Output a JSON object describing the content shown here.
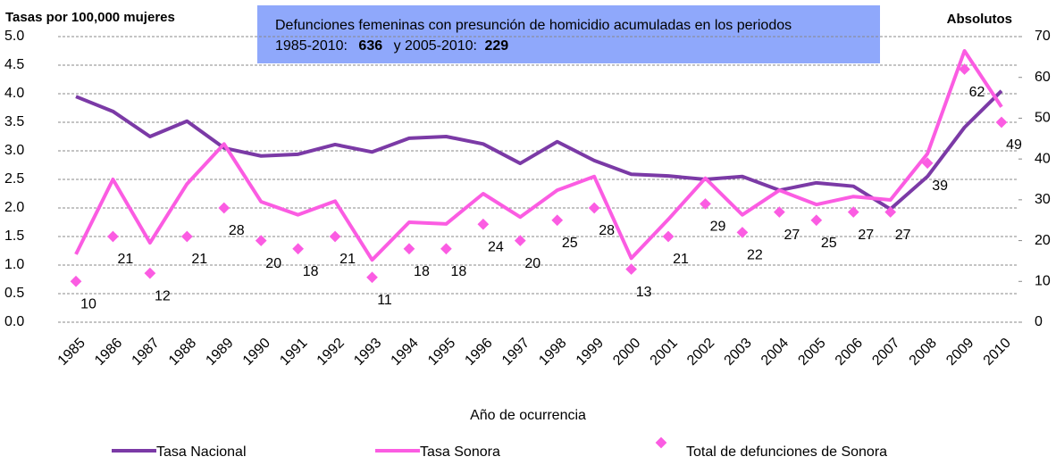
{
  "chart_data": {
    "type": "line",
    "y_label": "Tasas por 100,000 mujeres",
    "y2_label": "Absolutos",
    "x_label": "Año de ocurrencia",
    "annotation": [
      "Defunciones femeninas con presunción de homicidio acumuladas en los periodos",
      "1985-2010:",
      "636",
      "y 2005-2010:",
      "229"
    ],
    "categories": [
      "1985",
      "1986",
      "1987",
      "1988",
      "1989",
      "1990",
      "1991",
      "1992",
      "1993",
      "1994",
      "1995",
      "1996",
      "1997",
      "1998",
      "1999",
      "2000",
      "2001",
      "2002",
      "2003",
      "2004",
      "2005",
      "2006",
      "2007",
      "2008",
      "2009",
      "2010"
    ],
    "ylim": [
      0,
      5
    ],
    "yticks": [
      {
        "value": 0,
        "label": "0.0"
      },
      0.5,
      {
        "value": 1,
        "label": "1.0"
      },
      1.5,
      {
        "value": 2,
        "label": "2.0"
      },
      2.5,
      {
        "value": 3,
        "label": "3.0"
      },
      3.5,
      {
        "value": 4,
        "label": "4.0"
      },
      4.5,
      {
        "value": 5,
        "label": "5.0"
      }
    ],
    "y2lim": [
      0,
      70
    ],
    "y2ticks": [
      0,
      10,
      20,
      30,
      40,
      50,
      60,
      70
    ],
    "grid": true,
    "legend": "bottom",
    "series": [
      {
        "name": "Tasa  Nacional",
        "color": "#7b3aa6",
        "style": "line",
        "values": [
          3.95,
          3.69,
          3.25,
          3.52,
          3.05,
          2.91,
          2.94,
          3.11,
          2.98,
          3.22,
          3.25,
          3.12,
          2.78,
          3.16,
          2.83,
          2.59,
          2.56,
          2.5,
          2.55,
          2.31,
          2.44,
          2.38,
          1.98,
          2.55,
          3.41,
          4.05
        ]
      },
      {
        "name": "Tasa  Sonora",
        "color": "#fb5ce2",
        "style": "line",
        "values": [
          1.19,
          2.5,
          1.39,
          2.42,
          3.12,
          2.11,
          1.88,
          2.12,
          1.09,
          1.75,
          1.72,
          2.25,
          1.84,
          2.31,
          2.55,
          1.12,
          1.8,
          2.52,
          1.88,
          2.31,
          2.06,
          2.2,
          2.14,
          2.95,
          4.75,
          3.77
        ]
      },
      {
        "name": "Total de defunciones de Sonora",
        "color": "#fb5ce2",
        "style": "marker",
        "axis": "y2",
        "values": [
          10,
          21,
          12,
          21,
          28,
          20,
          18,
          21,
          11,
          18,
          18,
          24,
          20,
          25,
          28,
          13,
          21,
          29,
          22,
          27,
          25,
          27,
          27,
          39,
          62,
          49
        ]
      }
    ]
  }
}
